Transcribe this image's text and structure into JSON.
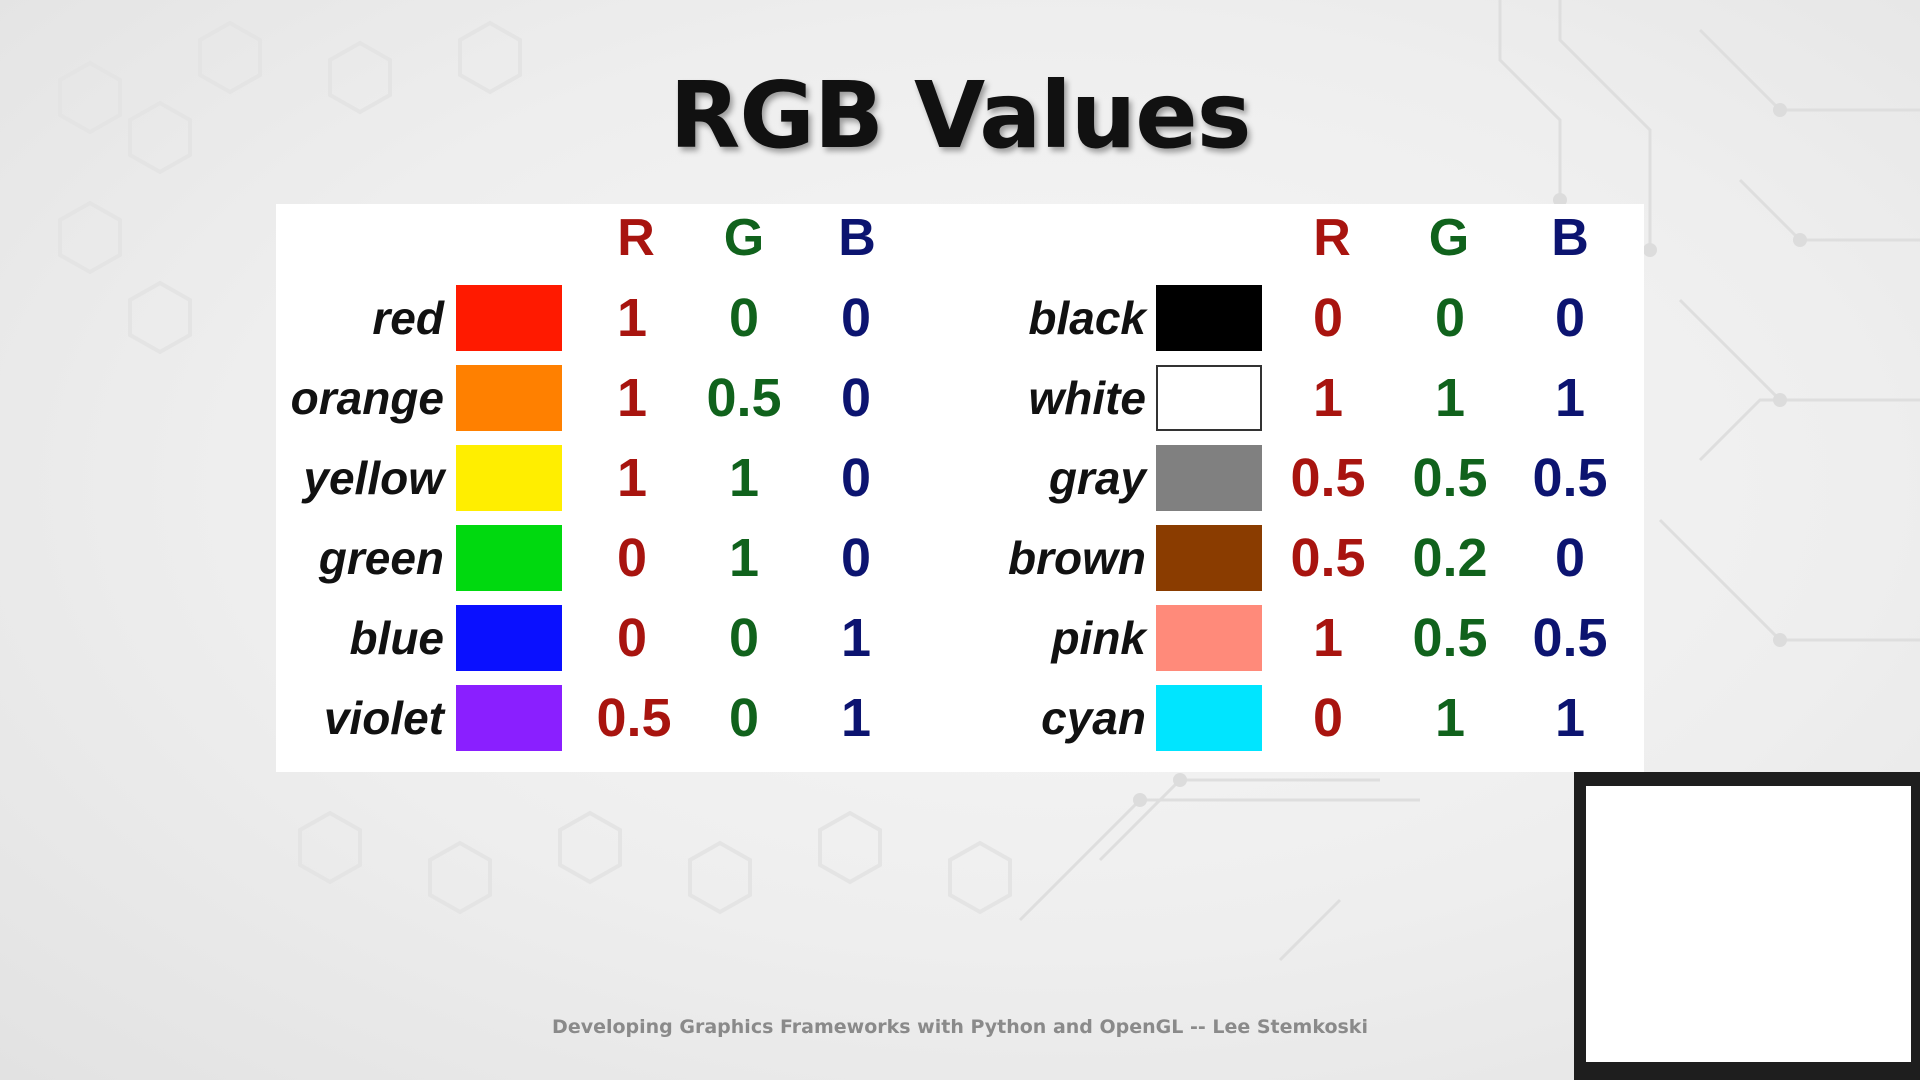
{
  "slide": {
    "title": "RGB Values",
    "footer": "Developing Graphics Frameworks with Python and OpenGL -- Lee Stemkoski"
  },
  "headers": {
    "r": "R",
    "g": "G",
    "b": "B"
  },
  "colors_left": [
    {
      "name": "red",
      "swatch": "#ff1a00",
      "r": "1",
      "g": "0",
      "b": "0"
    },
    {
      "name": "orange",
      "swatch": "#ff8000",
      "r": "1",
      "g": "0.5",
      "b": "0"
    },
    {
      "name": "yellow",
      "swatch": "#ffee00",
      "r": "1",
      "g": "1",
      "b": "0"
    },
    {
      "name": "green",
      "swatch": "#00d90f",
      "r": "0",
      "g": "1",
      "b": "0"
    },
    {
      "name": "blue",
      "swatch": "#0a10ff",
      "r": "0",
      "g": "0",
      "b": "1"
    },
    {
      "name": "violet",
      "swatch": "#8a1fff",
      "r": "0.5",
      "g": "0",
      "b": "1"
    }
  ],
  "colors_right": [
    {
      "name": "black",
      "swatch": "#000000",
      "r": "0",
      "g": "0",
      "b": "0"
    },
    {
      "name": "white",
      "swatch": "#ffffff",
      "r": "1",
      "g": "1",
      "b": "1"
    },
    {
      "name": "gray",
      "swatch": "#808080",
      "r": "0.5",
      "g": "0.5",
      "b": "0.5"
    },
    {
      "name": "brown",
      "swatch": "#8a3c00",
      "r": "0.5",
      "g": "0.2",
      "b": "0"
    },
    {
      "name": "pink",
      "swatch": "#ff8a7a",
      "r": "1",
      "g": "0.5",
      "b": "0.5"
    },
    {
      "name": "cyan",
      "swatch": "#00e5ff",
      "r": "0",
      "g": "1",
      "b": "1"
    }
  ],
  "theme": {
    "r_color": "#a8140f",
    "g_color": "#10621c",
    "b_color": "#0c1470"
  }
}
